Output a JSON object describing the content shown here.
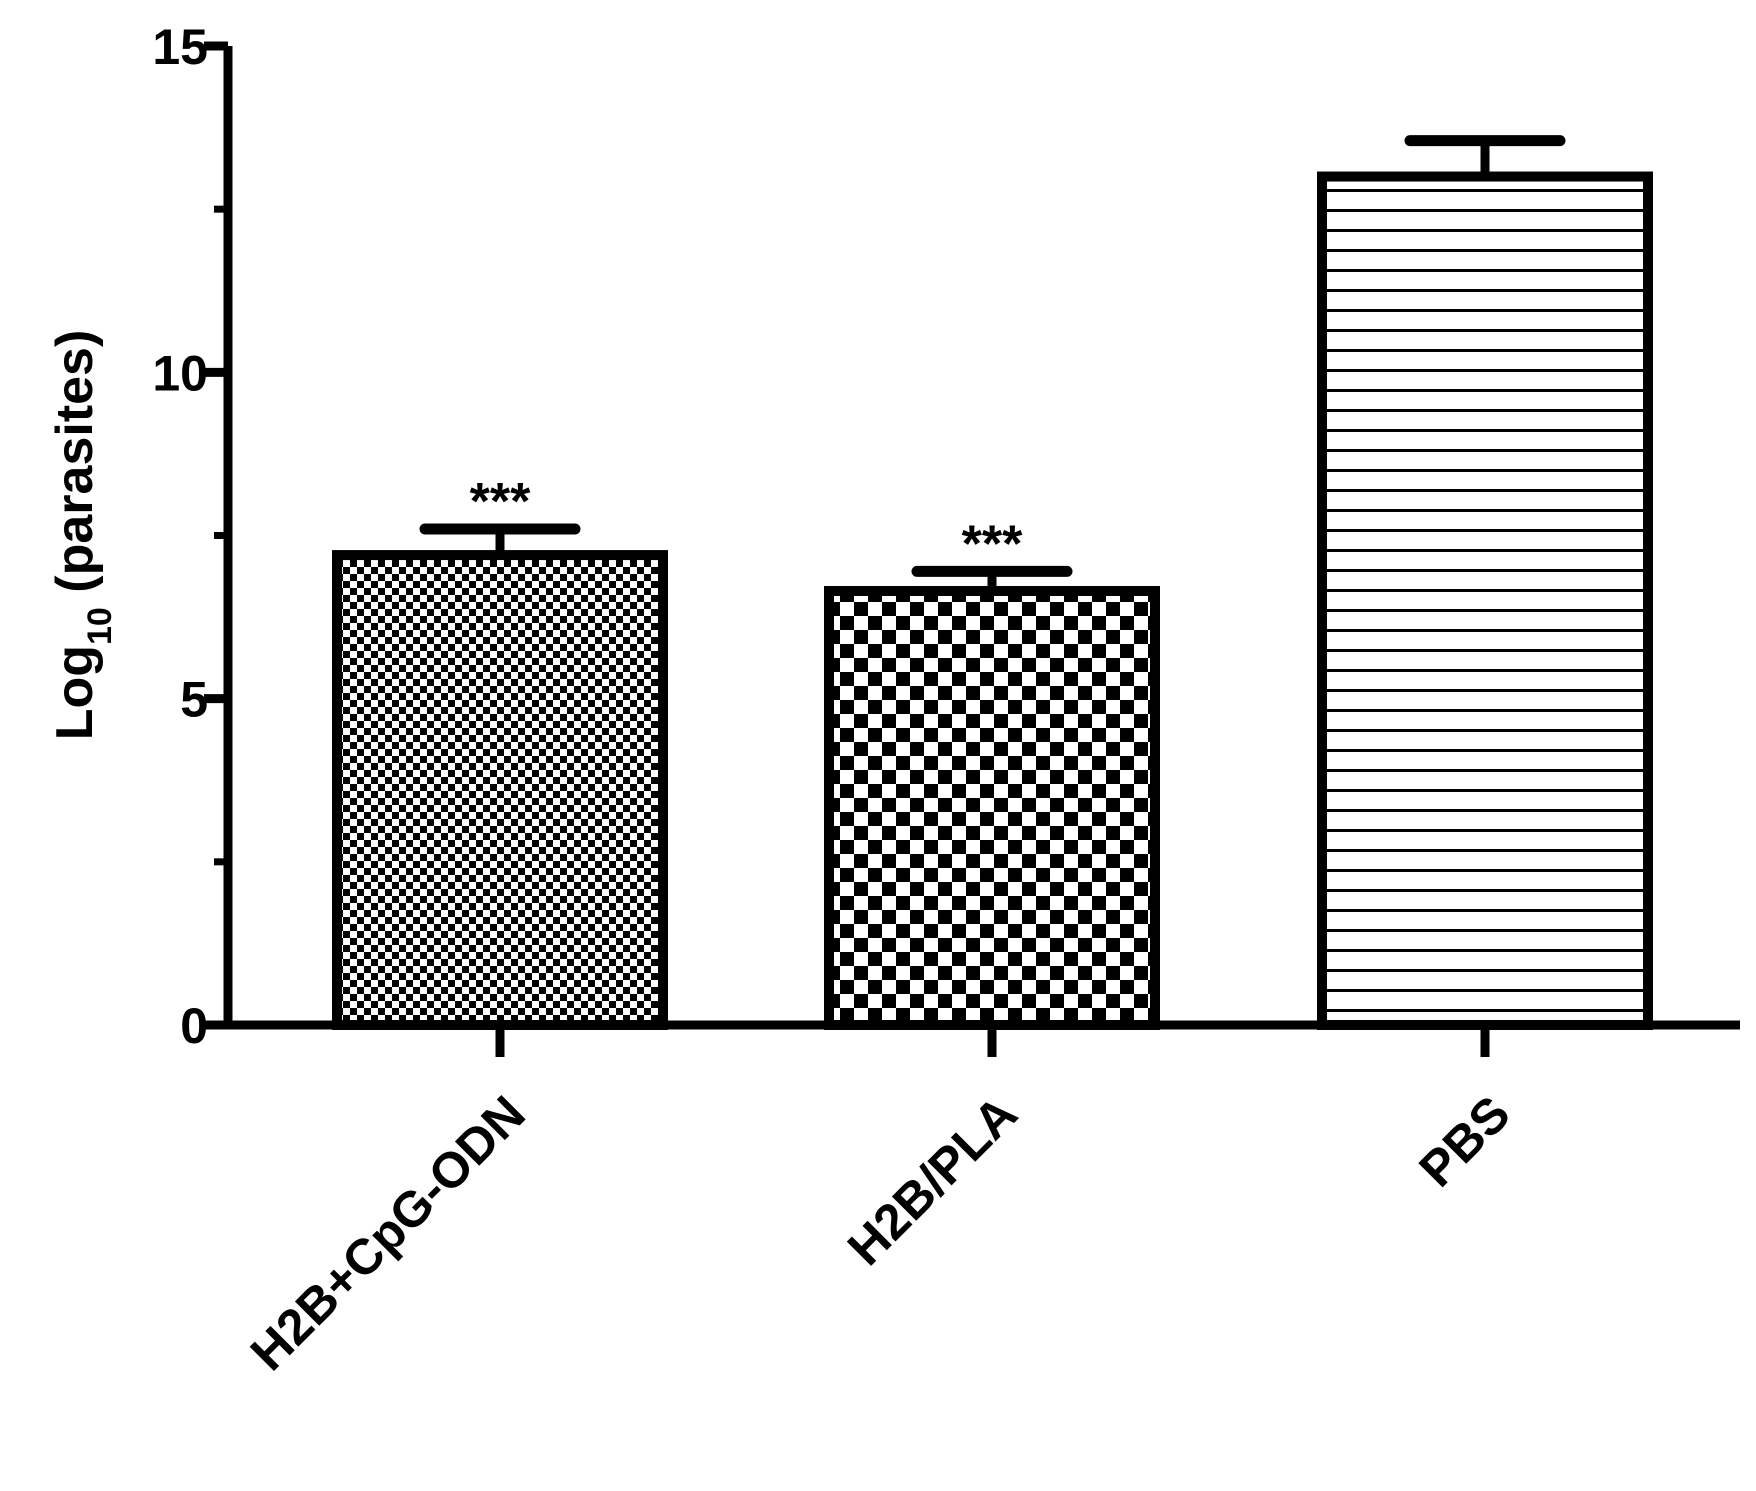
{
  "chart_data": {
    "type": "bar",
    "title": "",
    "xlabel": "",
    "ylabel": {
      "prefix": "Log",
      "subscript": "10",
      "suffix": " (parasites)"
    },
    "ylim": [
      0,
      15
    ],
    "yticks": {
      "major": [
        0,
        5,
        10,
        15
      ],
      "minor": [
        2.5,
        7.5,
        12.5
      ],
      "labels": [
        "0",
        "5",
        "10",
        "15"
      ]
    },
    "categories": [
      "H2B+CpG-ODN",
      "H2B/PLA",
      "PBS"
    ],
    "values": [
      7.2,
      6.65,
      13.0
    ],
    "errors": [
      0.4,
      0.3,
      0.55
    ],
    "significance": [
      "***",
      "***",
      ""
    ],
    "patterns": [
      "fine-checker",
      "coarse-checker",
      "horizontal-lines"
    ],
    "colors": {
      "stroke": "#000000",
      "fill": "#ffffff"
    },
    "grid": false,
    "legend": "none"
  }
}
